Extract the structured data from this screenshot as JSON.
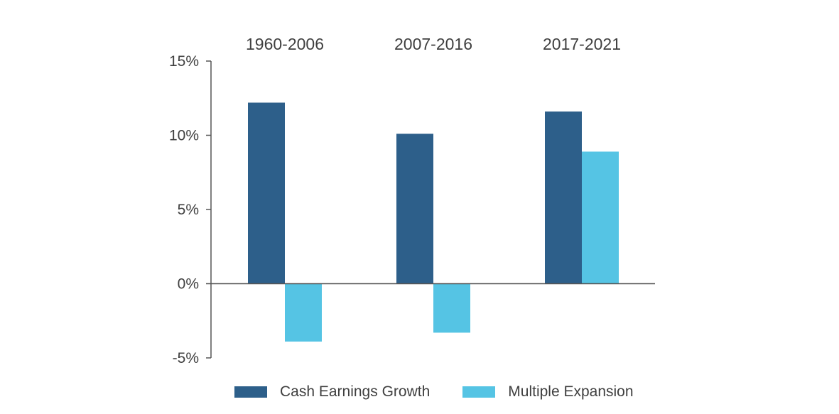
{
  "chart_data": {
    "type": "bar",
    "categories": [
      "1960-2006",
      "2007-2016",
      "2017-2021"
    ],
    "category_label_position": "top",
    "series": [
      {
        "name": "Cash Earnings Growth",
        "color": "#2d5f8a",
        "values": [
          12.2,
          10.1,
          11.6
        ]
      },
      {
        "name": "Multiple Expansion",
        "color": "#55c4e4",
        "values": [
          -3.9,
          -3.3,
          8.9
        ]
      }
    ],
    "yticks": [
      "-5%",
      "0%",
      "5%",
      "10%",
      "15%"
    ],
    "ytick_values": [
      -5,
      0,
      5,
      10,
      15
    ],
    "ylim": [
      -5,
      15
    ],
    "grid": false,
    "legend_position": "bottom",
    "title": "",
    "xlabel": "",
    "ylabel": ""
  }
}
